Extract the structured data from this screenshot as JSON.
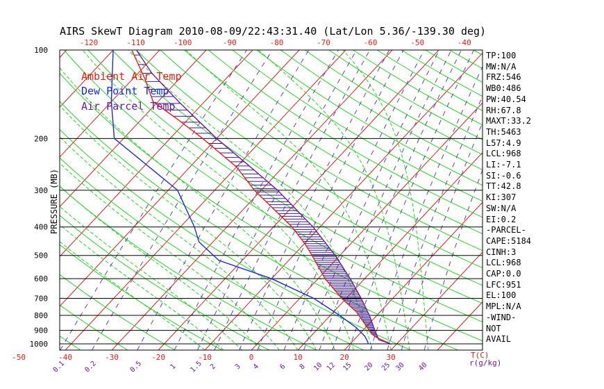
{
  "title": "AIRS SkewT Diagram 2010-08-09/22:43:31.40 (Lat/Lon 5.36/-139.30 deg)",
  "legend": [
    {
      "label": "Ambient Air Temp",
      "color": "#e0201c"
    },
    {
      "label": "Dew Point Temp",
      "color": "#1a2ad6"
    },
    {
      "label": "Air Parcel Temp",
      "color": "#6a1d9b"
    }
  ],
  "colors": {
    "isotherm": "#d22020",
    "dry_adiabat": "#2ccf2c",
    "moist_adiabat": "#2ccf2c",
    "mixing_ratio": "#5e3fb6",
    "isobar": "#000000",
    "hatch": "#3a1a8c"
  },
  "statistics": [
    "TP:100",
    "MW:N/A",
    "FRZ:546",
    "WB0:486",
    "PW:40.54",
    "RH:67.8",
    "MAXT:33.2",
    "TH:5463",
    "L57:4.9",
    "LCL:968",
    "LI:-7.1",
    "SI:-0.6",
    "TT:42.8",
    "KI:307",
    "SW:N/A",
    "EI:0.2",
    "-PARCEL-",
    "CAPE:5184",
    "CINH:3",
    "LCL:968",
    "CAP:0.0",
    "LFC:951",
    "EL:100",
    "MPL:N/A",
    "-WIND-",
    "NOT",
    "AVAIL"
  ],
  "chart_data": {
    "type": "skew-t",
    "title": "AIRS SkewT Diagram 2010-08-09/22:43:31.40 (Lat/Lon 5.36/-139.30 deg)",
    "ylabel": "PRESSURE (MB)",
    "y_ticks": [
      100,
      200,
      300,
      400,
      500,
      600,
      700,
      800,
      900,
      1000
    ],
    "ylim": [
      1050,
      100
    ],
    "yscale": "log",
    "bottom_temp_ticks": [
      -50,
      -40,
      -30,
      -20,
      -10,
      0,
      10,
      20,
      30
    ],
    "bottom_temp_label": "T(C)",
    "top_temp_ticks": [
      -120,
      -110,
      -100,
      -90,
      -80,
      -70,
      -60,
      -50,
      -40
    ],
    "mixing_ratio_ticks": [
      "0.1",
      "0.2",
      "0.5",
      "1",
      "1.5",
      "2",
      "3",
      "4",
      "6",
      "8",
      "10",
      "12",
      "15",
      "20",
      "25",
      "30",
      "40"
    ],
    "mixing_ratio_label": "r(g/kg)",
    "series": [
      {
        "name": "Ambient Air Temp",
        "color": "#e0201c",
        "points": [
          {
            "p": 1003,
            "t": 29.0
          },
          {
            "p": 975,
            "t": 26.5
          },
          {
            "p": 950,
            "t": 24.3
          },
          {
            "p": 925,
            "t": 22.6
          },
          {
            "p": 880,
            "t": 20.4
          },
          {
            "p": 780,
            "t": 15.0
          },
          {
            "p": 700,
            "t": 9.0
          },
          {
            "p": 600,
            "t": 1.5
          },
          {
            "p": 500,
            "t": -6.0
          },
          {
            "p": 460,
            "t": -9.5
          },
          {
            "p": 400,
            "t": -16.0
          },
          {
            "p": 300,
            "t": -31.5
          },
          {
            "p": 250,
            "t": -40.0
          },
          {
            "p": 200,
            "t": -53.0
          },
          {
            "p": 170,
            "t": -63.0
          },
          {
            "p": 150,
            "t": -71.0
          },
          {
            "p": 125,
            "t": -77.5
          },
          {
            "p": 100,
            "t": -86.0
          }
        ]
      },
      {
        "name": "Dew Point Temp",
        "color": "#1a2ad6",
        "points": [
          {
            "p": 1003,
            "t": 24.0
          },
          {
            "p": 975,
            "t": 23.0
          },
          {
            "p": 940,
            "t": 21.5
          },
          {
            "p": 880,
            "t": 18.0
          },
          {
            "p": 800,
            "t": 12.0
          },
          {
            "p": 700,
            "t": 3.0
          },
          {
            "p": 600,
            "t": -10.0
          },
          {
            "p": 520,
            "t": -25.0
          },
          {
            "p": 450,
            "t": -33.0
          },
          {
            "p": 400,
            "t": -37.0
          },
          {
            "p": 300,
            "t": -48.0
          },
          {
            "p": 200,
            "t": -72.0
          },
          {
            "p": 150,
            "t": -80.0
          },
          {
            "p": 100,
            "t": -90.0
          }
        ]
      },
      {
        "name": "Air Parcel Temp",
        "color": "#6a1d9b",
        "points": [
          {
            "p": 1003,
            "t": 29.0
          },
          {
            "p": 968,
            "t": 25.3
          },
          {
            "p": 900,
            "t": 22.6
          },
          {
            "p": 800,
            "t": 18.4
          },
          {
            "p": 700,
            "t": 13.2
          },
          {
            "p": 600,
            "t": 6.9
          },
          {
            "p": 500,
            "t": -1.0
          },
          {
            "p": 400,
            "t": -11.5
          },
          {
            "p": 300,
            "t": -26.5
          },
          {
            "p": 250,
            "t": -37.0
          },
          {
            "p": 200,
            "t": -50.0
          },
          {
            "p": 150,
            "t": -65.5
          },
          {
            "p": 120,
            "t": -77.0
          },
          {
            "p": 100,
            "t": -85.0
          }
        ]
      }
    ],
    "grid": true,
    "legend_position": "top-left"
  }
}
